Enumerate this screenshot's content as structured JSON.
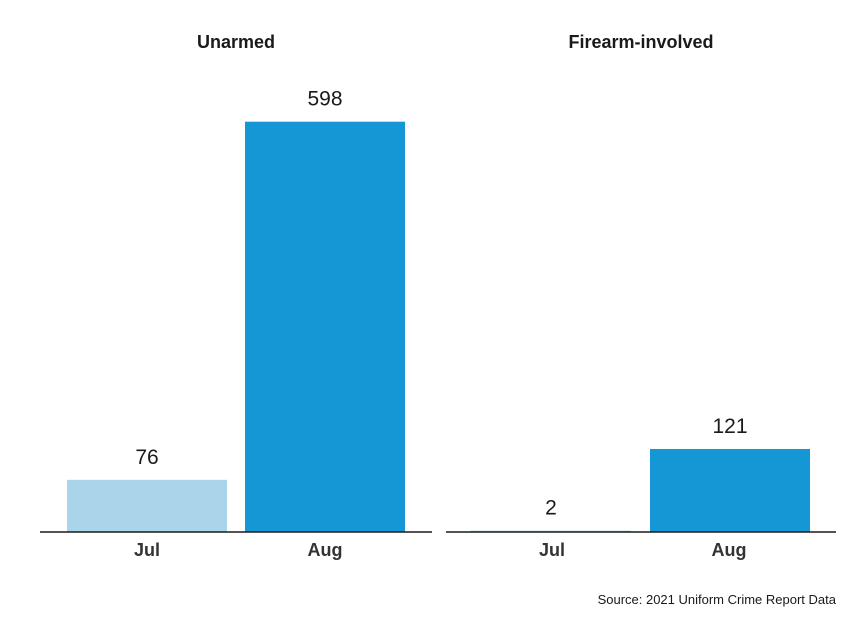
{
  "chart_data": [
    {
      "type": "bar",
      "title": "Unarmed",
      "categories": [
        "Jul",
        "Aug"
      ],
      "values": [
        76,
        598
      ],
      "colors": [
        "#a9d4ea",
        "#1497d4"
      ],
      "xlabel": "",
      "ylabel": "",
      "ylim": [
        0,
        650
      ],
      "grid": false
    },
    {
      "type": "bar",
      "title": "Firearm-involved",
      "categories": [
        "Jul",
        "Aug"
      ],
      "values": [
        2,
        121
      ],
      "colors": [
        "#a9d4ea",
        "#1497d4"
      ],
      "xlabel": "",
      "ylabel": "",
      "ylim": [
        0,
        650
      ],
      "grid": false
    }
  ],
  "footer": {
    "source": "Source: 2021 Uniform Crime Report Data"
  }
}
